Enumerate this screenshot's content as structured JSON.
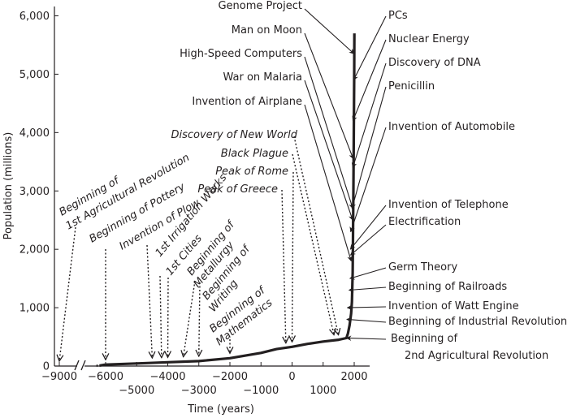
{
  "chart_data": {
    "type": "line",
    "title": "",
    "xlabel": "Time (years)",
    "ylabel": "Population (millions)",
    "ylim": [
      0,
      6000
    ],
    "y_ticks": [
      "0",
      "1,000",
      "2,000",
      "3,000",
      "4,000",
      "5,000",
      "6,000"
    ],
    "x_ticks": [
      "-9000",
      "-6000",
      "-5000",
      "-4000",
      "-3000",
      "-2000",
      "-1000",
      "0",
      "1000",
      "2000"
    ],
    "series": [
      {
        "x": [
          -6400,
          -6000,
          -5000,
          -4000,
          -3000,
          -2000,
          -1000,
          -500,
          0,
          500,
          1000,
          1500,
          1750,
          1800,
          1850,
          1900,
          1927,
          1950,
          1960,
          1974,
          1987,
          1999,
          2005
        ],
        "y": [
          8,
          25,
          45,
          65,
          85,
          135,
          225,
          290,
          330,
          380,
          420,
          450,
          480,
          560,
          700,
          900,
          1100,
          1600,
          2200,
          3000,
          4000,
          5000,
          5700
        ]
      }
    ],
    "annotations": [
      {
        "label": "Genome Project",
        "style": "solid",
        "x": 1996,
        "y": 5350
      },
      {
        "label": "Man on Moon",
        "style": "solid",
        "x": 1969,
        "y": 3550
      },
      {
        "label": "High-Speed Computers",
        "style": "solid",
        "x": 1955,
        "y": 2700
      },
      {
        "label": "War on Malaria",
        "style": "solid",
        "x": 1952,
        "y": 2500
      },
      {
        "label": "Invention of Airplane",
        "style": "solid",
        "x": 1903,
        "y": 1800
      },
      {
        "label": "PCs",
        "style": "solid",
        "x": 1980,
        "y": 4900
      },
      {
        "label": "Nuclear Energy",
        "style": "solid",
        "x": 1956,
        "y": 4200
      },
      {
        "label": "Discovery of DNA",
        "style": "solid",
        "x": 1953,
        "y": 3400
      },
      {
        "label": "Penicillin",
        "style": "solid",
        "x": 1928,
        "y": 2700
      },
      {
        "label": "Invention of Automobile",
        "style": "solid",
        "x": 1886,
        "y": 2300
      },
      {
        "label": "Invention of Telephone",
        "style": "solid",
        "x": 1876,
        "y": 2000
      },
      {
        "label": "Electrification",
        "style": "solid",
        "x": 1880,
        "y": 1900
      },
      {
        "label": "Germ Theory",
        "style": "solid",
        "x": 1860,
        "y": 1500
      },
      {
        "label": "Beginning of Railroads",
        "style": "solid",
        "x": 1830,
        "y": 1300
      },
      {
        "label": "Invention of Watt Engine",
        "style": "solid",
        "x": 1776,
        "y": 1000
      },
      {
        "label": "Beginning of Industrial Revolution",
        "style": "solid",
        "x": 1760,
        "y": 800
      },
      {
        "label": "Beginning of",
        "label2": "2nd Agricultural Revolution",
        "style": "solid",
        "x": 1750,
        "y": 480
      },
      {
        "label": "Discovery of New World",
        "style": "dotted",
        "italic": true,
        "x": 1492,
        "y": 450
      },
      {
        "label": "Black Plague",
        "style": "dotted",
        "italic": true,
        "x": 1348,
        "y": 450
      },
      {
        "label": "Peak of Rome",
        "style": "dotted",
        "italic": true,
        "x": 0,
        "y": 330
      },
      {
        "label": "Peak of Greece",
        "style": "dotted",
        "italic": true,
        "x": -200,
        "y": 310
      },
      {
        "label": "Beginning of",
        "label2": "1st Agricultural Revolution",
        "style": "dotted",
        "italic": true,
        "x": -9000,
        "y": 0
      },
      {
        "label": "Beginning of Pottery",
        "style": "dotted",
        "italic": true,
        "x": -6000,
        "y": 25
      },
      {
        "label": "Invention of Plow",
        "style": "dotted",
        "italic": true,
        "x": -4500,
        "y": 55
      },
      {
        "label": "1st Irrigation Works",
        "style": "dotted",
        "italic": true,
        "x": -4200,
        "y": 60
      },
      {
        "label": "1st Cities",
        "style": "dotted",
        "italic": true,
        "x": -4000,
        "y": 65
      },
      {
        "label": "Beginning of",
        "label2": "Metallurgy",
        "style": "dotted",
        "italic": true,
        "x": -3500,
        "y": 75
      },
      {
        "label": "Beginning of",
        "label2": "Writing",
        "style": "dotted",
        "italic": true,
        "x": -3000,
        "y": 85
      },
      {
        "label": "Beginning of",
        "label2": "Mathematics",
        "style": "dotted",
        "italic": true,
        "x": -2000,
        "y": 135
      }
    ],
    "grid": false,
    "legend": "none",
    "color": "#231f20"
  }
}
